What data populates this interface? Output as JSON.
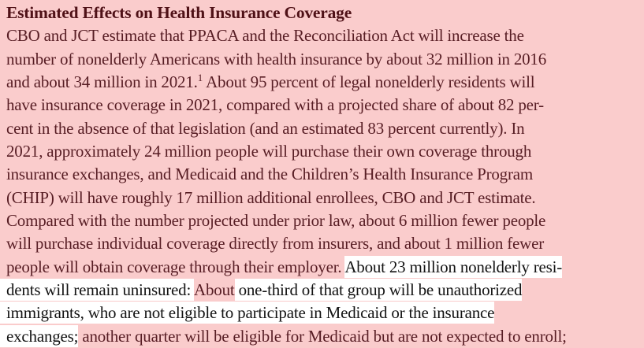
{
  "page": {
    "background_color": "#facccc",
    "plain_background_color": "#ffffff",
    "highlighted_text_color": "#571d24",
    "plain_text_color": "#131313",
    "heading_color": "#4f1117"
  },
  "document": {
    "lines": [
      {
        "heading": true,
        "segments": [
          {
            "text": "Estimated Effects on Health Insurance Coverage",
            "hl": true
          }
        ]
      },
      {
        "segments": [
          {
            "text": "CBO and JCT estimate that PPACA and the Reconciliation Act will increase the",
            "hl": true
          }
        ]
      },
      {
        "segments": [
          {
            "text": "number of nonelderly Americans with health insurance by about 32 million in 2016",
            "hl": true
          }
        ]
      },
      {
        "segments": [
          {
            "text": "and about 34 million in 2021.",
            "hl": true
          },
          {
            "text": "1",
            "hl": true,
            "sup": true
          },
          {
            "text": " About 95 percent of legal nonelderly residents will",
            "hl": true
          }
        ]
      },
      {
        "segments": [
          {
            "text": "have insurance coverage in 2021, compared with a projected share of about 82 per-",
            "hl": true
          }
        ]
      },
      {
        "segments": [
          {
            "text": "cent in the absence of that legislation (and an estimated 83 percent currently). In",
            "hl": true
          }
        ]
      },
      {
        "segments": [
          {
            "text": "2021, approximately 24 million people will purchase their own coverage through",
            "hl": true
          }
        ]
      },
      {
        "segments": [
          {
            "text": "insurance exchanges, and Medicaid and the Children’s Health Insurance Program",
            "hl": true
          }
        ]
      },
      {
        "segments": [
          {
            "text": "(CHIP) will have roughly 17 million additional enrollees, CBO and JCT estimate.",
            "hl": true
          }
        ]
      },
      {
        "segments": [
          {
            "text": "Compared with the number projected under prior law, about 6 million fewer people",
            "hl": true
          }
        ]
      },
      {
        "segments": [
          {
            "text": "will purchase individual coverage directly from insurers, and about 1 million fewer",
            "hl": true
          }
        ]
      },
      {
        "segments": [
          {
            "text": "people will obtain coverage through their employer. ",
            "hl": true
          },
          {
            "text": "About 23 million nonelderly resi-",
            "hl": false
          }
        ]
      },
      {
        "segments": [
          {
            "text": "dents will remain uninsured: ",
            "hl": false
          },
          {
            "text": "About",
            "hl": true
          },
          {
            "text": " one-third of that group will be unauthorized",
            "hl": false
          }
        ]
      },
      {
        "segments": [
          {
            "text": "immigrants, who are not eligible to participate in Medicaid or the insurance",
            "hl": false
          }
        ]
      },
      {
        "segments": [
          {
            "text": "exchanges;",
            "hl": false
          },
          {
            "text": " another quarter will be eligible for Medicaid but are not expected to enroll;",
            "hl": true
          }
        ]
      }
    ]
  }
}
